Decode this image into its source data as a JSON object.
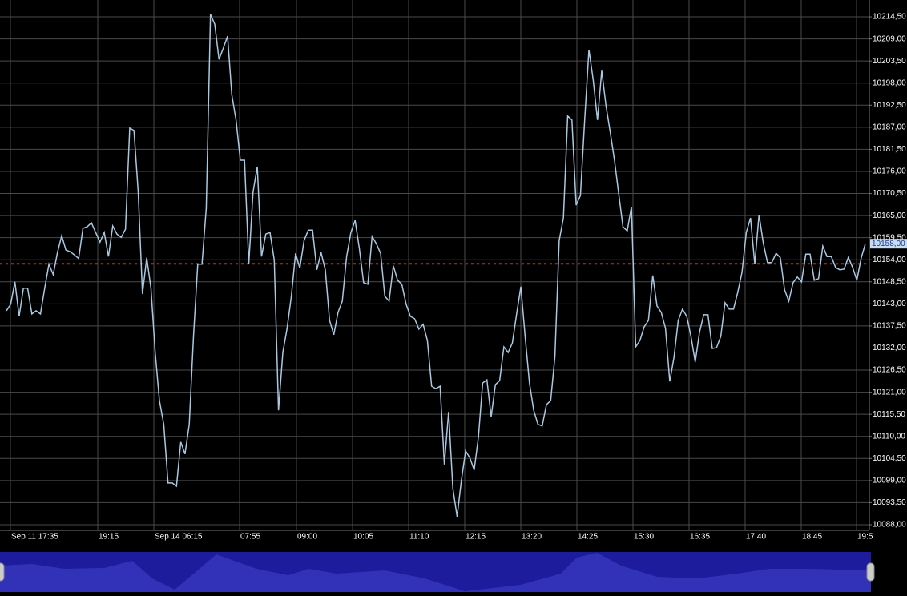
{
  "chart_data": {
    "type": "line",
    "color": "#a9c9e2",
    "reference_color": "#e0201e",
    "x_labels": [
      "Sep 11 17:35",
      "19:15",
      "Sep 14 06:15",
      "07:55",
      "09:00",
      "10:05",
      "11:10",
      "12:15",
      "13:20",
      "14:25",
      "15:30",
      "16:35",
      "17:40",
      "18:45",
      "19:5"
    ],
    "values": [
      10141.3,
      10142.9,
      10148.5,
      10139.9,
      10146.9,
      10146.9,
      10140.5,
      10141.3,
      10140.5,
      10146.9,
      10152.9,
      10150.3,
      10155.8,
      10160.0,
      10156.4,
      10156.0,
      10155.2,
      10154.3,
      10161.8,
      10162.2,
      10163.2,
      10160.8,
      10158.4,
      10160.8,
      10154.8,
      10162.4,
      10160.4,
      10159.6,
      10161.6,
      10186.8,
      10186.2,
      10170.8,
      10145.5,
      10154.5,
      10146.9,
      10130.9,
      10118.9,
      10113.0,
      10098.4,
      10098.4,
      10097.6,
      10108.6,
      10105.6,
      10113.0,
      10134.9,
      10152.9,
      10152.9,
      10166.8,
      10215.1,
      10212.7,
      10203.9,
      10206.7,
      10209.7,
      10195.1,
      10188.8,
      10178.8,
      10178.8,
      10152.9,
      10170.8,
      10177.2,
      10154.8,
      10160.4,
      10160.8,
      10153.9,
      10116.5,
      10130.9,
      10136.9,
      10144.9,
      10155.6,
      10151.9,
      10158.8,
      10161.4,
      10161.4,
      10151.5,
      10155.8,
      10151.5,
      10138.9,
      10135.3,
      10140.9,
      10143.7,
      10154.8,
      10160.8,
      10163.8,
      10156.8,
      10148.3,
      10147.9,
      10159.8,
      10158.0,
      10155.6,
      10144.9,
      10143.7,
      10152.5,
      10148.9,
      10147.9,
      10142.9,
      10139.9,
      10139.3,
      10136.7,
      10137.9,
      10133.9,
      10122.5,
      10121.9,
      10122.5,
      10103.0,
      10116.1,
      10097.0,
      10090.0,
      10099.0,
      10106.4,
      10104.6,
      10101.6,
      10109.8,
      10123.3,
      10124.1,
      10114.9,
      10122.9,
      10123.9,
      10132.3,
      10130.9,
      10133.3,
      10140.5,
      10147.3,
      10134.9,
      10123.3,
      10116.5,
      10113.0,
      10112.6,
      10117.9,
      10118.9,
      10129.9,
      10158.8,
      10164.4,
      10189.8,
      10188.8,
      10167.6,
      10170.0,
      10188.8,
      10206.3,
      10198.7,
      10188.8,
      10201.1,
      10192.4,
      10185.8,
      10178.8,
      10170.4,
      10162.2,
      10161.2,
      10167.2,
      10132.3,
      10133.9,
      10137.3,
      10138.9,
      10150.1,
      10142.5,
      10140.9,
      10136.9,
      10123.7,
      10129.7,
      10138.9,
      10141.7,
      10139.9,
      10134.9,
      10128.5,
      10135.9,
      10140.3,
      10140.3,
      10131.9,
      10132.1,
      10134.9,
      10143.3,
      10141.7,
      10141.7,
      10145.9,
      10150.9,
      10160.8,
      10164.4,
      10152.9,
      10165.2,
      10158.2,
      10153.3,
      10153.3,
      10155.6,
      10154.5,
      10146.5,
      10143.7,
      10148.3,
      10149.7,
      10148.5,
      10155.4,
      10155.4,
      10148.9,
      10149.3,
      10157.4,
      10154.8,
      10154.8,
      10152.1,
      10151.5,
      10151.7,
      10154.6,
      10152.1,
      10148.9,
      10154.3,
      10158.0
    ],
    "reference_line": 10153.0,
    "current_value": {
      "value": 10158,
      "label": "10158,00"
    },
    "ylim": [
      10086.6,
      10218.7
    ],
    "yticks": [
      {
        "value": 10214.5,
        "label": "10214,50"
      },
      {
        "value": 10209,
        "label": "10209,00"
      },
      {
        "value": 10203.5,
        "label": "10203,50"
      },
      {
        "value": 10198,
        "label": "10198,00"
      },
      {
        "value": 10192.5,
        "label": "10192,50"
      },
      {
        "value": 10187,
        "label": "10187,00"
      },
      {
        "value": 10181.5,
        "label": "10181,50"
      },
      {
        "value": 10176,
        "label": "10176,00"
      },
      {
        "value": 10170.5,
        "label": "10170,50"
      },
      {
        "value": 10165,
        "label": "10165,00"
      },
      {
        "value": 10159.5,
        "label": "10159,50"
      },
      {
        "value": 10154,
        "label": "10154,00"
      },
      {
        "value": 10148.5,
        "label": "10148,50"
      },
      {
        "value": 10143,
        "label": "10143,00"
      },
      {
        "value": 10137.5,
        "label": "10137,50"
      },
      {
        "value": 10132,
        "label": "10132,00"
      },
      {
        "value": 10126.5,
        "label": "10126,50"
      },
      {
        "value": 10121,
        "label": "10121,00"
      },
      {
        "value": 10115.5,
        "label": "10115,50"
      },
      {
        "value": 10110,
        "label": "10110,00"
      },
      {
        "value": 10104.5,
        "label": "10104,50"
      },
      {
        "value": 10099,
        "label": "10099,00"
      },
      {
        "value": 10093.5,
        "label": "10093,50"
      },
      {
        "value": 10088,
        "label": "10088,00"
      }
    ],
    "grid": true
  }
}
